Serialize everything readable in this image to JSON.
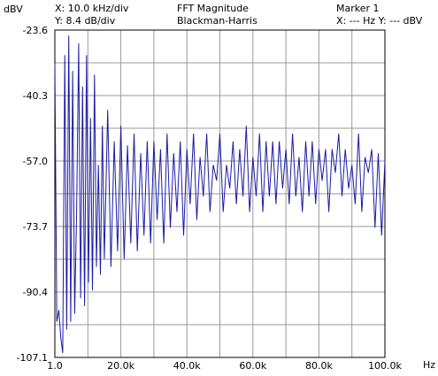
{
  "header": {
    "x_scale": "X: 10.0 kHz/div",
    "y_scale": "Y: 8.4 dB/div",
    "title": "FFT Magnitude",
    "window": "Blackman-Harris",
    "marker_title": "Marker 1",
    "marker_readout": "X: --- Hz  Y: --- dBV"
  },
  "colors": {
    "trace": "#1a1aa6",
    "grid": "#9a9a9a",
    "border": "#000000"
  },
  "chart_data": {
    "type": "line",
    "title": "FFT Magnitude",
    "subtitle": "Blackman-Harris",
    "ylabel": "dBV",
    "xlabel": "Hz",
    "xlim": [
      1.0,
      100000
    ],
    "ylim": [
      -107.1,
      -23.6
    ],
    "grid": true,
    "x_tick_labels": [
      "1.0",
      "20.0k",
      "40.0k",
      "60.0k",
      "80.0k",
      "100.0k"
    ],
    "y_tick_labels": [
      "-23.6",
      "-40.3",
      "-57.0",
      "-73.7",
      "-90.4",
      "-107.1"
    ],
    "series": [
      {
        "name": "",
        "x": [
          1,
          600,
          1200,
          1800,
          2400,
          3000,
          3600,
          4200,
          4800,
          5400,
          6000,
          6600,
          7200,
          7800,
          8400,
          9000,
          9600,
          10200,
          10800,
          11400,
          12000,
          12600,
          13200,
          13800,
          14400,
          15000,
          16000,
          17000,
          18000,
          19000,
          20000,
          21000,
          22000,
          23000,
          24000,
          25000,
          26000,
          27000,
          28000,
          29000,
          30000,
          31000,
          32000,
          33000,
          34000,
          35000,
          36000,
          37000,
          38000,
          39000,
          40000,
          41000,
          42000,
          43000,
          44000,
          45000,
          46000,
          47000,
          48000,
          49000,
          50000,
          51000,
          52000,
          53000,
          54000,
          55000,
          56000,
          57000,
          58000,
          59000,
          60000,
          61000,
          62000,
          63000,
          64000,
          65000,
          66000,
          67000,
          68000,
          69000,
          70000,
          71000,
          72000,
          73000,
          74000,
          75000,
          76000,
          77000,
          78000,
          79000,
          80000,
          81000,
          82000,
          83000,
          84000,
          85000,
          86000,
          87000,
          88000,
          89000,
          90000,
          91000,
          92000,
          93000,
          94000,
          95000,
          96000,
          97000,
          98000,
          99000,
          100000
        ],
        "y": [
          -32,
          -98,
          -95,
          -102,
          -106,
          -30,
          -100,
          -25,
          -98,
          -34,
          -96,
          -70,
          -27,
          -92,
          -38,
          -94,
          -30,
          -88,
          -46,
          -90,
          -35,
          -84,
          -58,
          -86,
          -48,
          -82,
          -44,
          -84,
          -52,
          -80,
          -48,
          -82,
          -53,
          -78,
          -50,
          -80,
          -55,
          -76,
          -52,
          -78,
          -52,
          -72,
          -54,
          -78,
          -50,
          -74,
          -55,
          -70,
          -52,
          -76,
          -54,
          -68,
          -50,
          -72,
          -56,
          -66,
          -50,
          -70,
          -58,
          -62,
          -50,
          -70,
          -58,
          -64,
          -52,
          -68,
          -54,
          -66,
          -48,
          -70,
          -56,
          -66,
          -50,
          -70,
          -52,
          -66,
          -52,
          -68,
          -52,
          -64,
          -54,
          -68,
          -50,
          -66,
          -56,
          -70,
          -52,
          -66,
          -52,
          -68,
          -54,
          -62,
          -54,
          -70,
          -54,
          -60,
          -50,
          -66,
          -54,
          -64,
          -58,
          -68,
          -50,
          -70,
          -56,
          -60,
          -54,
          -74,
          -55,
          -76,
          -57
        ]
      }
    ]
  }
}
